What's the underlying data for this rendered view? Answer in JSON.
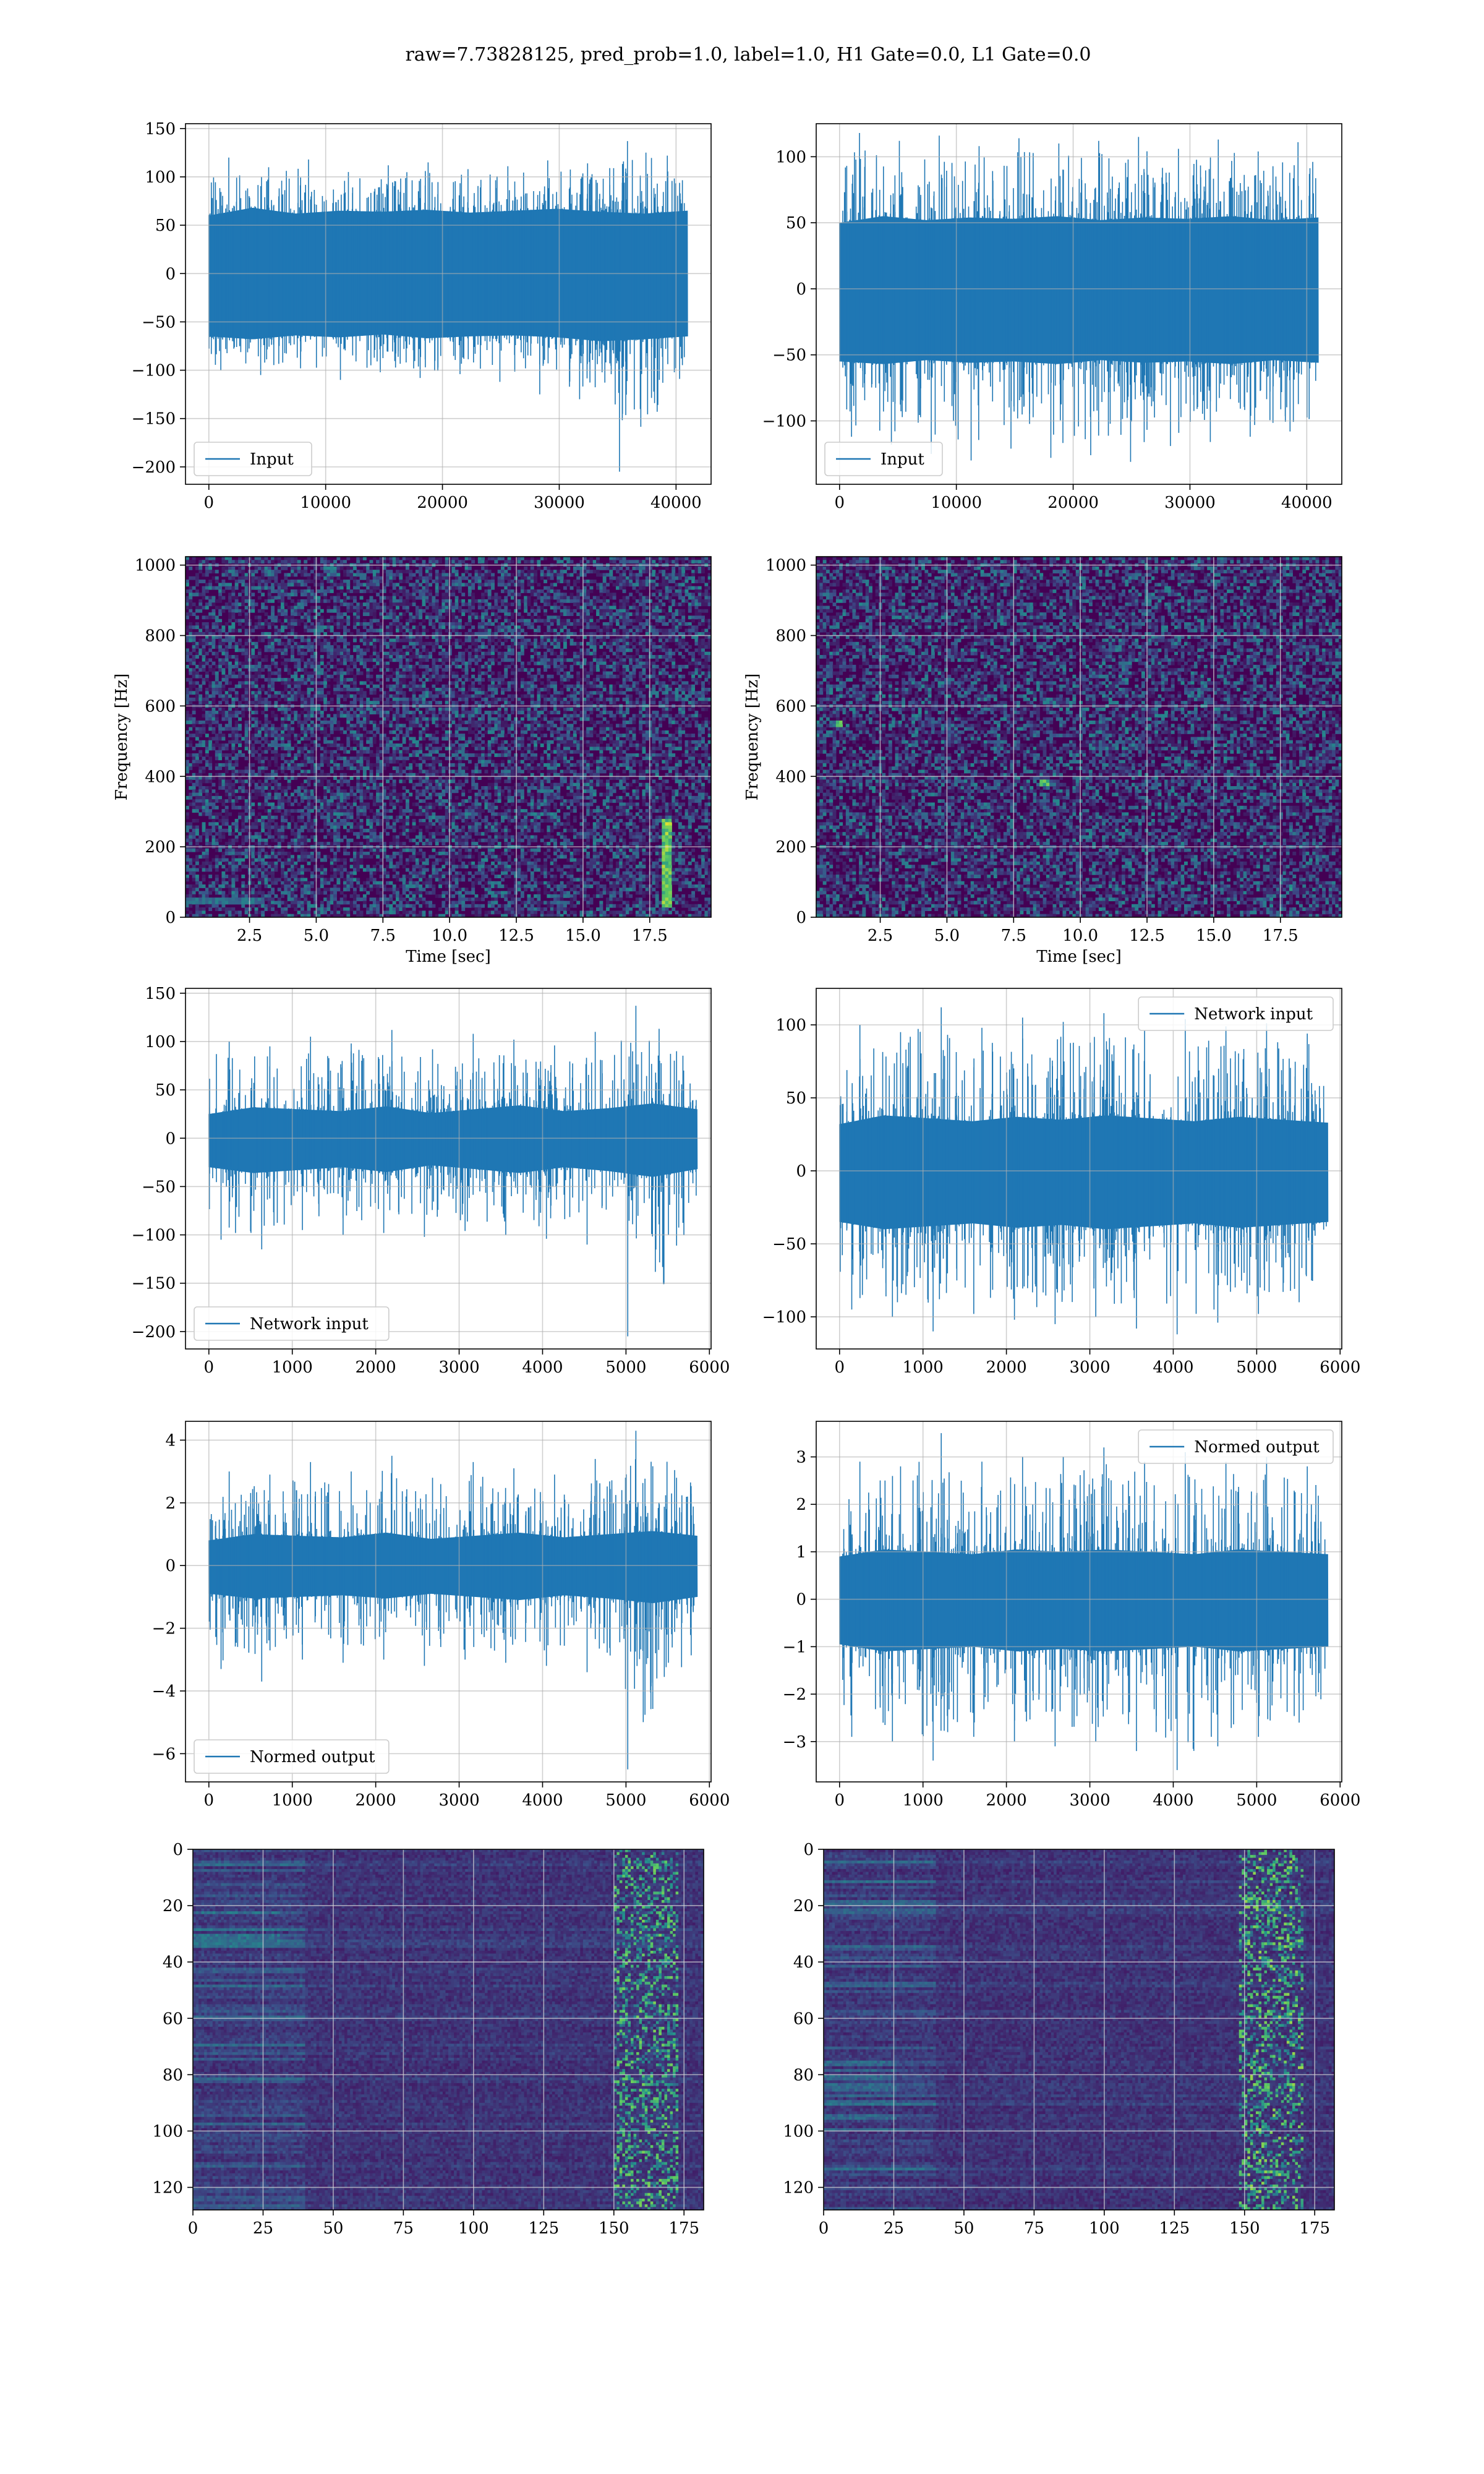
{
  "figure": {
    "suptitle": "raw=7.73828125, pred_prob=1.0, label=1.0, H1 Gate=0.0, L1 Gate=0.0"
  },
  "colors": {
    "line": "#1f77b4",
    "grid": "#b0b0b0",
    "viridis_low": "#440154",
    "viridis_mid": "#21918c",
    "viridis_high": "#fde725"
  },
  "chart_data": [
    {
      "id": "input-h1",
      "type": "line",
      "title": "",
      "xlabel": "",
      "ylabel": "",
      "xlim": [
        -2000,
        43000
      ],
      "ylim": [
        -218,
        155
      ],
      "xticks": [
        0,
        10000,
        20000,
        30000,
        40000
      ],
      "yticks": [
        -200,
        -150,
        -100,
        -50,
        0,
        50,
        100,
        150
      ],
      "series": [
        {
          "name": "Input",
          "x_range": [
            0,
            40960
          ],
          "envelope_upper": [
            60,
            68,
            62,
            65,
            64,
            66,
            63,
            65,
            67,
            64,
            62,
            65
          ],
          "envelope_lower": [
            -65,
            -68,
            -64,
            -66,
            -63,
            -67,
            -65,
            -64,
            -66,
            -70,
            -68,
            -65
          ],
          "spike_peaks": [
            120,
            110,
            118,
            105,
            112,
            115,
            108,
            111,
            117,
            114,
            137,
            122
          ],
          "spike_troughs": [
            -100,
            -105,
            -98,
            -110,
            -102,
            -108,
            -104,
            -112,
            -125,
            -130,
            -205,
            -110
          ]
        }
      ],
      "legend": "lower left",
      "grid": true
    },
    {
      "id": "input-l1",
      "type": "line",
      "title": "",
      "xlabel": "",
      "ylabel": "",
      "xlim": [
        -2000,
        43000
      ],
      "ylim": [
        -148,
        125
      ],
      "xticks": [
        0,
        10000,
        20000,
        30000,
        40000
      ],
      "yticks": [
        -100,
        -50,
        0,
        50,
        100
      ],
      "series": [
        {
          "name": "Input",
          "x_range": [
            0,
            40960
          ],
          "envelope_upper": [
            50,
            55,
            52,
            54,
            53,
            55,
            52,
            54,
            53,
            55,
            52,
            54
          ],
          "envelope_lower": [
            -55,
            -57,
            -54,
            -56,
            -55,
            -57,
            -54,
            -56,
            -55,
            -57,
            -54,
            -56
          ],
          "spike_peaks": [
            118,
            112,
            116,
            108,
            114,
            110,
            112,
            115,
            106,
            113,
            104,
            111
          ],
          "spike_troughs": [
            -112,
            -118,
            -125,
            -130,
            -121,
            -128,
            -126,
            -131,
            -119,
            -116,
            -112,
            -108
          ]
        }
      ],
      "legend": "lower left",
      "grid": true
    },
    {
      "id": "spectrogram-h1",
      "type": "heatmap",
      "title": "",
      "xlabel": "Time [sec]",
      "ylabel": "Frequency [Hz]",
      "xlim": [
        0.1,
        19.8
      ],
      "ylim": [
        0,
        1024
      ],
      "xticks": [
        2.5,
        5.0,
        7.5,
        10.0,
        12.5,
        15.0,
        17.5
      ],
      "yticks": [
        0,
        200,
        400,
        600,
        800,
        1000
      ],
      "colormap": "viridis",
      "features": [
        {
          "kind": "low-frequency band",
          "t": [
            0.1,
            3.0
          ],
          "f": [
            40,
            60
          ],
          "level": 0.45
        },
        {
          "kind": "glitch",
          "t": [
            17.9,
            18.3
          ],
          "f": [
            30,
            280
          ],
          "level": 0.95
        }
      ],
      "grid": true
    },
    {
      "id": "spectrogram-l1",
      "type": "heatmap",
      "title": "",
      "xlabel": "Time [sec]",
      "ylabel": "Frequency [Hz]",
      "xlim": [
        0.1,
        19.8
      ],
      "ylim": [
        0,
        1024
      ],
      "xticks": [
        2.5,
        5.0,
        7.5,
        10.0,
        12.5,
        15.0,
        17.5
      ],
      "yticks": [
        0,
        200,
        400,
        600,
        800,
        1000
      ],
      "colormap": "viridis",
      "features": [
        {
          "kind": "hot pixel",
          "t": [
            0.8,
            1.1
          ],
          "f": [
            540,
            560
          ],
          "level": 0.9
        },
        {
          "kind": "hot pixel",
          "t": [
            8.5,
            8.8
          ],
          "f": [
            370,
            390
          ],
          "level": 0.8
        },
        {
          "kind": "hot pixel",
          "t": [
            17.8,
            18.0
          ],
          "f": [
            70,
            90
          ],
          "level": 0.7
        }
      ],
      "grid": true
    },
    {
      "id": "network-input-h1",
      "type": "line",
      "title": "",
      "xlabel": "",
      "ylabel": "",
      "xlim": [
        -280,
        6020
      ],
      "ylim": [
        -218,
        155
      ],
      "xticks": [
        0,
        1000,
        2000,
        3000,
        4000,
        5000,
        6000
      ],
      "yticks": [
        -200,
        -150,
        -100,
        -50,
        0,
        50,
        100,
        150
      ],
      "series": [
        {
          "name": "Network input",
          "x_range": [
            0,
            5850
          ],
          "envelope_upper": [
            25,
            32,
            30,
            28,
            33,
            26,
            30,
            34,
            28,
            31,
            36,
            30
          ],
          "envelope_lower": [
            -30,
            -36,
            -33,
            -30,
            -35,
            -28,
            -32,
            -36,
            -30,
            -34,
            -40,
            -32
          ],
          "spike_peaks": [
            100,
            95,
            105,
            98,
            112,
            92,
            108,
            102,
            96,
            110,
            137,
            90
          ],
          "spike_troughs": [
            -105,
            -115,
            -95,
            -100,
            -98,
            -102,
            -96,
            -100,
            -104,
            -110,
            -205,
            -100
          ]
        }
      ],
      "legend": "lower left",
      "grid": true
    },
    {
      "id": "network-input-l1",
      "type": "line",
      "title": "",
      "xlabel": "",
      "ylabel": "",
      "xlim": [
        -280,
        6020
      ],
      "ylim": [
        -122,
        125
      ],
      "xticks": [
        0,
        1000,
        2000,
        3000,
        4000,
        5000,
        6000
      ],
      "yticks": [
        -100,
        -50,
        0,
        50,
        100
      ],
      "series": [
        {
          "name": "Network input",
          "x_range": [
            0,
            5850
          ],
          "envelope_upper": [
            32,
            38,
            36,
            34,
            37,
            35,
            38,
            36,
            34,
            37,
            35,
            33
          ],
          "envelope_lower": [
            -35,
            -40,
            -38,
            -36,
            -39,
            -37,
            -40,
            -38,
            -36,
            -39,
            -37,
            -35
          ],
          "spike_peaks": [
            100,
            95,
            112,
            98,
            105,
            102,
            108,
            96,
            104,
            99,
            101,
            94
          ],
          "spike_troughs": [
            -95,
            -100,
            -110,
            -98,
            -102,
            -105,
            -100,
            -108,
            -112,
            -104,
            -98,
            -90
          ]
        }
      ],
      "legend": "upper right",
      "grid": true
    },
    {
      "id": "normed-output-h1",
      "type": "line",
      "title": "",
      "xlabel": "",
      "ylabel": "",
      "xlim": [
        -280,
        6020
      ],
      "ylim": [
        -6.9,
        4.6
      ],
      "xticks": [
        0,
        1000,
        2000,
        3000,
        4000,
        5000,
        6000
      ],
      "yticks": [
        -6,
        -4,
        -2,
        0,
        2,
        4
      ],
      "series": [
        {
          "name": "Normed output",
          "x_range": [
            0,
            5850
          ],
          "envelope_upper": [
            0.8,
            1.0,
            0.95,
            0.9,
            1.05,
            0.85,
            0.95,
            1.05,
            0.9,
            1.0,
            1.1,
            0.95
          ],
          "envelope_lower": [
            -0.9,
            -1.05,
            -1.0,
            -0.95,
            -1.05,
            -0.9,
            -1.0,
            -1.1,
            -0.95,
            -1.05,
            -1.2,
            -1.0
          ],
          "spike_peaks": [
            3.0,
            2.9,
            3.3,
            3.0,
            3.5,
            2.8,
            3.3,
            3.1,
            2.9,
            3.4,
            4.3,
            2.8
          ],
          "spike_troughs": [
            -3.3,
            -3.7,
            -3.0,
            -3.1,
            -3.0,
            -3.2,
            -3.0,
            -3.1,
            -3.2,
            -3.4,
            -6.5,
            -3.1
          ]
        }
      ],
      "legend": "lower left",
      "grid": true
    },
    {
      "id": "normed-output-l1",
      "type": "line",
      "title": "",
      "xlabel": "",
      "ylabel": "",
      "xlim": [
        -280,
        6020
      ],
      "ylim": [
        -3.85,
        3.75
      ],
      "xticks": [
        0,
        1000,
        2000,
        3000,
        4000,
        5000,
        6000
      ],
      "yticks": [
        -3,
        -2,
        -1,
        0,
        1,
        2,
        3
      ],
      "series": [
        {
          "name": "Normed output",
          "x_range": [
            0,
            5850
          ],
          "envelope_upper": [
            0.9,
            1.05,
            1.0,
            0.95,
            1.05,
            1.0,
            1.05,
            1.0,
            0.95,
            1.05,
            1.0,
            0.95
          ],
          "envelope_lower": [
            -0.95,
            -1.1,
            -1.05,
            -1.0,
            -1.1,
            -1.05,
            -1.1,
            -1.05,
            -1.0,
            -1.1,
            -1.05,
            -1.0
          ],
          "spike_peaks": [
            2.9,
            2.8,
            3.5,
            2.9,
            3.0,
            3.0,
            3.2,
            2.9,
            3.1,
            2.9,
            3.0,
            2.8
          ],
          "spike_troughs": [
            -2.9,
            -3.0,
            -3.4,
            -2.9,
            -3.0,
            -3.1,
            -3.0,
            -3.2,
            -3.6,
            -3.1,
            -2.9,
            -2.6
          ]
        }
      ],
      "legend": "upper right",
      "grid": true
    },
    {
      "id": "feature-map-h1",
      "type": "heatmap",
      "title": "",
      "xlabel": "",
      "ylabel": "",
      "xlim": [
        0,
        182
      ],
      "ylim": [
        128,
        0
      ],
      "xticks": [
        0,
        25,
        50,
        75,
        100,
        125,
        150,
        175
      ],
      "yticks": [
        0,
        20,
        40,
        60,
        80,
        100,
        120
      ],
      "colormap": "viridis",
      "features": [
        {
          "kind": "bright region",
          "col": [
            150,
            172
          ],
          "rows": [
            0,
            128
          ],
          "level": 0.8
        },
        {
          "kind": "cyan streaks",
          "col": [
            0,
            30
          ],
          "rows": [
            20,
            35
          ],
          "level": 0.45
        }
      ],
      "grid": true
    },
    {
      "id": "feature-map-l1",
      "type": "heatmap",
      "title": "",
      "xlabel": "",
      "ylabel": "",
      "xlim": [
        0,
        182
      ],
      "ylim": [
        128,
        0
      ],
      "xticks": [
        0,
        25,
        50,
        75,
        100,
        125,
        150,
        175
      ],
      "yticks": [
        0,
        20,
        40,
        60,
        80,
        100,
        120
      ],
      "colormap": "viridis",
      "features": [
        {
          "kind": "bright region",
          "col": [
            148,
            170
          ],
          "rows": [
            0,
            128
          ],
          "level": 0.85
        },
        {
          "kind": "cyan streaks",
          "col": [
            0,
            25
          ],
          "rows": [
            75,
            110
          ],
          "level": 0.4
        }
      ],
      "grid": true
    }
  ]
}
